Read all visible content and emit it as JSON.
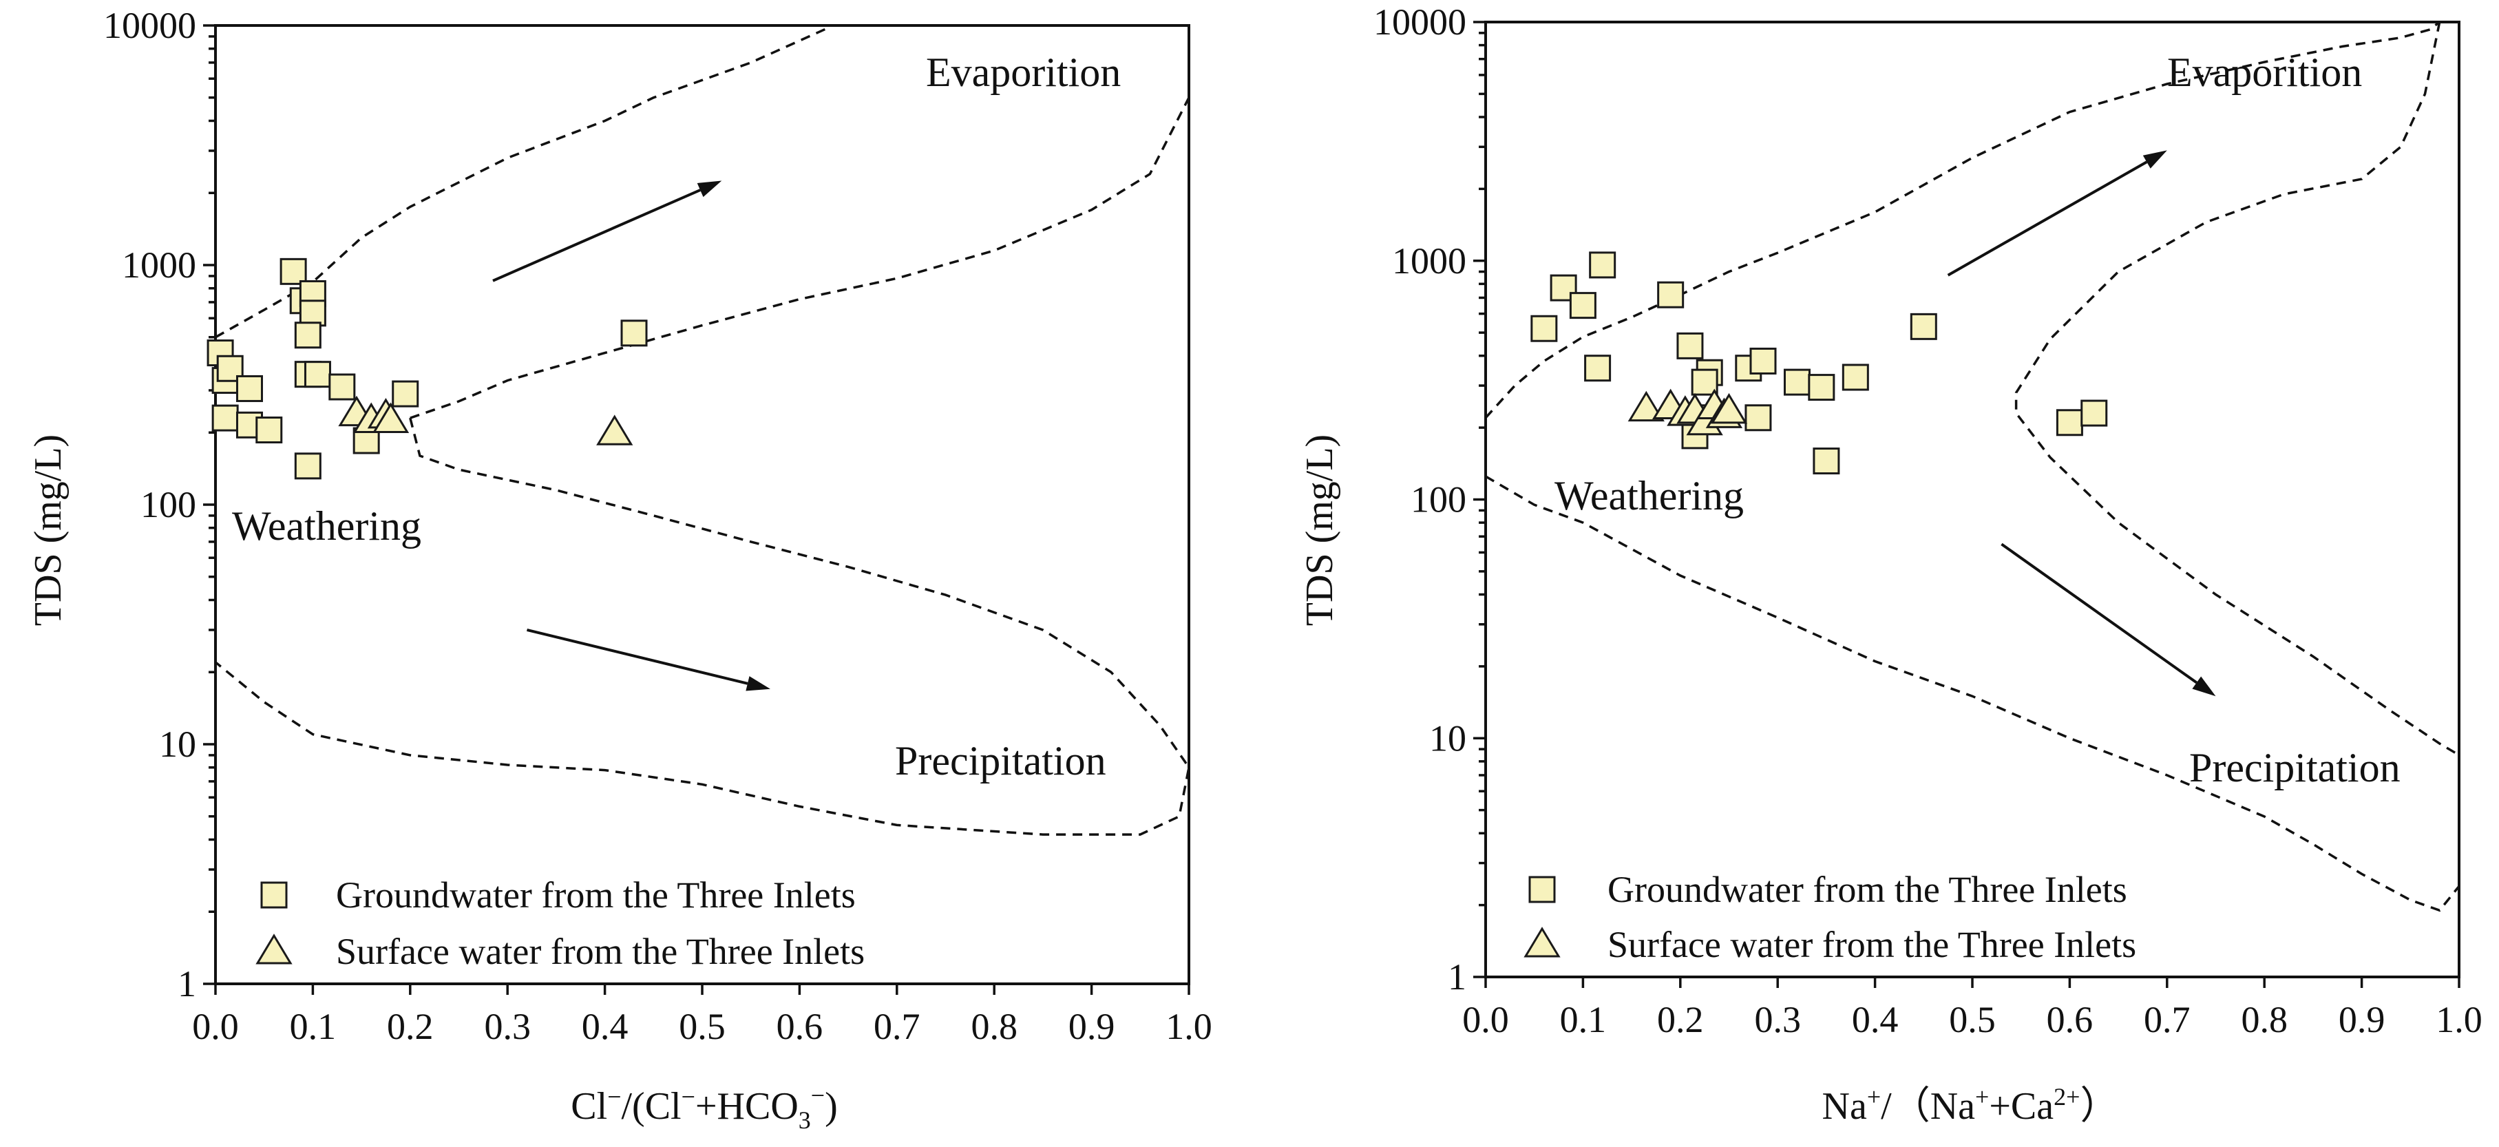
{
  "colors": {
    "marker_fill": "#f7f2bd",
    "marker_stroke": "#1a1a1a",
    "ink": "#111111"
  },
  "chart_data": [
    {
      "type": "scatter",
      "xlabel": {
        "pre": "Cl",
        "sup1": "−",
        "mid": "/(Cl",
        "sup2": "−",
        "mid2": "+HCO",
        "sub": "3",
        "sup3": "−",
        "post": ")"
      },
      "ylabel": "TDS (mg/L)",
      "xlim": [
        0,
        1.0
      ],
      "ylim": [
        1,
        10000
      ],
      "yscale": "log",
      "grid": false,
      "legend_position": "bottom-left",
      "x_ticks": [
        "0.0",
        "0.1",
        "0.2",
        "0.3",
        "0.4",
        "0.5",
        "0.6",
        "0.7",
        "0.8",
        "0.9",
        "1.0"
      ],
      "y_ticks": [
        "1",
        "10",
        "100",
        "1000",
        "10000"
      ],
      "annotations": {
        "evaporation": "Evaporition",
        "weathering": "Weathering",
        "precipitation": "Precipitation"
      },
      "series": [
        {
          "name": "Groundwater from the Three Inlets",
          "marker": "square",
          "points": [
            [
              0.005,
              430
            ],
            [
              0.01,
              330
            ],
            [
              0.015,
              370
            ],
            [
              0.035,
              305
            ],
            [
              0.01,
              230
            ],
            [
              0.035,
              215
            ],
            [
              0.055,
              205
            ],
            [
              0.08,
              940
            ],
            [
              0.09,
              710
            ],
            [
              0.1,
              760
            ],
            [
              0.1,
              630
            ],
            [
              0.095,
              510
            ],
            [
              0.095,
              350
            ],
            [
              0.105,
              350
            ],
            [
              0.13,
              310
            ],
            [
              0.095,
              145
            ],
            [
              0.155,
              185
            ],
            [
              0.195,
              290
            ],
            [
              0.43,
              520
            ]
          ]
        },
        {
          "name": "Surface water from the Three Inlets",
          "marker": "triangle",
          "points": [
            [
              0.145,
              240
            ],
            [
              0.16,
              225
            ],
            [
              0.175,
              235
            ],
            [
              0.18,
              225
            ],
            [
              0.41,
              200
            ]
          ]
        }
      ]
    },
    {
      "type": "scatter",
      "xlabel": {
        "pre": "Na",
        "sup1": "+",
        "mid": "/（Na",
        "sup2": "+",
        "mid2": "+Ca",
        "sup3": "2+",
        "post": "）"
      },
      "ylabel": "TDS (mg/L)",
      "xlim": [
        0,
        1.0
      ],
      "ylim": [
        1,
        10000
      ],
      "yscale": "log",
      "grid": false,
      "legend_position": "bottom-left",
      "x_ticks": [
        "0.0",
        "0.1",
        "0.2",
        "0.3",
        "0.4",
        "0.5",
        "0.6",
        "0.7",
        "0.8",
        "0.9",
        "1.0"
      ],
      "y_ticks": [
        "1",
        "10",
        "100",
        "1000",
        "10000"
      ],
      "annotations": {
        "evaporation": "Evaporition",
        "weathering": "Weathering",
        "precipitation": "Precipitation"
      },
      "series": [
        {
          "name": "Groundwater from the Three Inlets",
          "marker": "square",
          "points": [
            [
              0.06,
              520
            ],
            [
              0.08,
              770
            ],
            [
              0.1,
              650
            ],
            [
              0.12,
              960
            ],
            [
              0.115,
              355
            ],
            [
              0.19,
              720
            ],
            [
              0.21,
              440
            ],
            [
              0.23,
              340
            ],
            [
              0.225,
              310
            ],
            [
              0.22,
              220
            ],
            [
              0.215,
              185
            ],
            [
              0.27,
              355
            ],
            [
              0.285,
              380
            ],
            [
              0.28,
              220
            ],
            [
              0.32,
              310
            ],
            [
              0.345,
              295
            ],
            [
              0.38,
              325
            ],
            [
              0.35,
              145
            ],
            [
              0.45,
              530
            ],
            [
              0.6,
              210
            ],
            [
              0.625,
              230
            ]
          ]
        },
        {
          "name": "Surface water from the Three Inlets",
          "marker": "triangle",
          "points": [
            [
              0.165,
              240
            ],
            [
              0.19,
              245
            ],
            [
              0.205,
              230
            ],
            [
              0.215,
              235
            ],
            [
              0.225,
              210
            ],
            [
              0.235,
              245
            ],
            [
              0.245,
              225
            ],
            [
              0.25,
              235
            ]
          ]
        }
      ]
    }
  ]
}
